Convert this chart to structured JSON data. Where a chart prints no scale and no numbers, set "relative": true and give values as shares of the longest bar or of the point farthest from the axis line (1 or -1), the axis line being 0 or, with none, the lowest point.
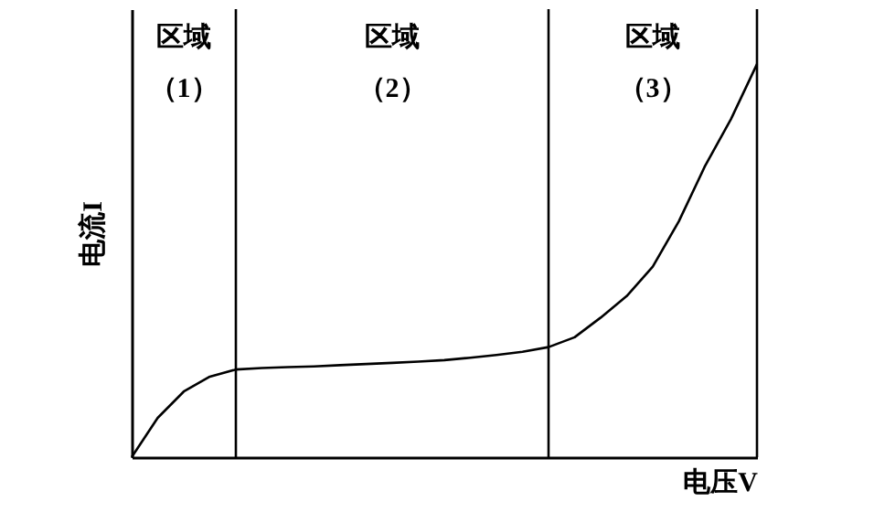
{
  "chart_data": {
    "type": "line",
    "relative": true,
    "xlabel": "电压V",
    "ylabel": "电流I",
    "categories": [
      null,
      null,
      null,
      null,
      null,
      null,
      null,
      null,
      null,
      null,
      null,
      null,
      null,
      null,
      null,
      null,
      null,
      null,
      null,
      null,
      null,
      null,
      null,
      null,
      null
    ],
    "series": [
      {
        "color": "#000000",
        "values": [
          0,
          0.1,
          0.167,
          0.205,
          0.223,
          0.227,
          0.229,
          0.231,
          0.234,
          0.237,
          0.24,
          0.243,
          0.247,
          0.253,
          0.26,
          0.268,
          0.28,
          0.305,
          0.355,
          0.41,
          0.485,
          0.6,
          0.74,
          0.86,
          1
        ]
      }
    ],
    "annotations": [
      "区域（1）",
      "区域（2）",
      "区域（3）"
    ]
  }
}
